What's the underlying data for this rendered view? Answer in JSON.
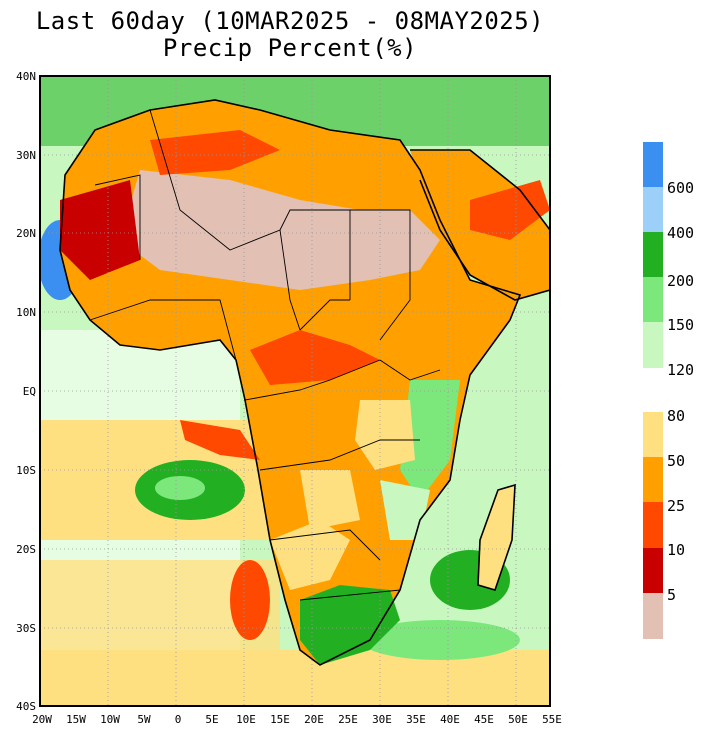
{
  "header": {
    "title": "Last 60day (10MAR2025 - 08MAY2025)",
    "subtitle": "Precip Percent(%)"
  },
  "axes": {
    "lat_labels": [
      "40N",
      "30N",
      "20N",
      "10N",
      "EQ",
      "10S",
      "20S",
      "30S",
      "40S"
    ],
    "lon_labels": [
      "20W",
      "15W",
      "10W",
      "5W",
      "0",
      "5E",
      "10E",
      "15E",
      "20E",
      "25E",
      "30E",
      "35E",
      "40E",
      "45E",
      "50E",
      "55E"
    ],
    "lat_range": [
      -40,
      40
    ],
    "lon_range": [
      -20,
      55
    ]
  },
  "legend": {
    "wet": {
      "labels": [
        "600",
        "400",
        "200",
        "150",
        "120"
      ],
      "colors": [
        "#3a8ff0",
        "#9cd0f8",
        "#22b022",
        "#7ce87c",
        "#c8f8c0"
      ]
    },
    "dry": {
      "labels": [
        "80",
        "50",
        "25",
        "10",
        "5"
      ],
      "colors": [
        "#ffe080",
        "#ffa000",
        "#ff4800",
        "#c80000",
        "#e2c0b4"
      ]
    }
  },
  "colors": {
    "background": "#ffffff",
    "border": "#000000",
    "grid": "#999999"
  }
}
